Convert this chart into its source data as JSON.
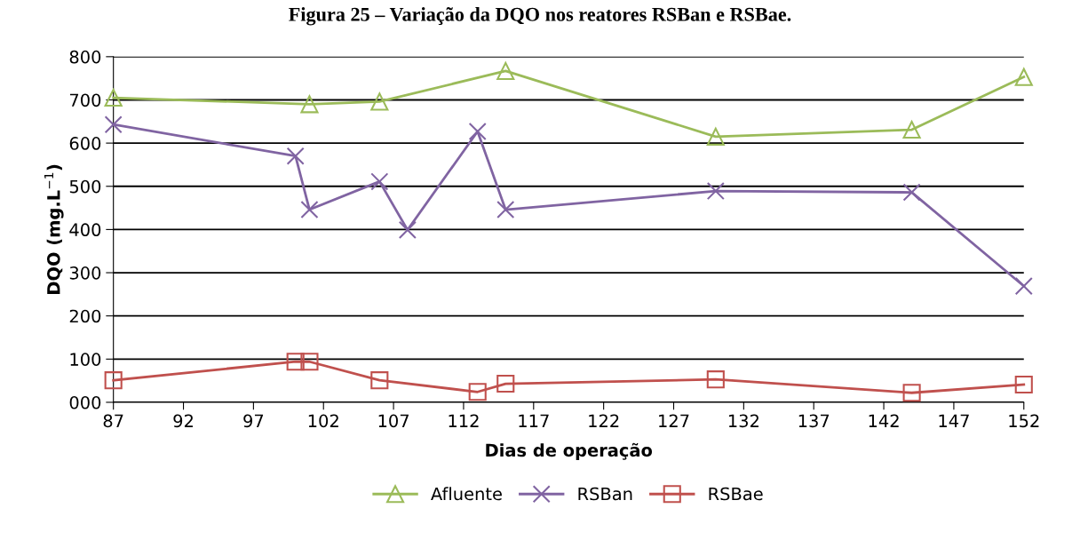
{
  "chart_data": {
    "type": "line",
    "title": "Figura 25 – Variação da DQO nos reatores RSBan e RSBae.",
    "xlabel": "Dias de operação",
    "ylabel": "DQO (mg.L$^{−1}$)",
    "xlim": [
      87,
      152
    ],
    "xticks": [
      87,
      92,
      97,
      102,
      107,
      112,
      117,
      122,
      127,
      132,
      137,
      142,
      147,
      152
    ],
    "ylim": [
      0,
      800
    ],
    "yticks": [
      {
        "value": 0,
        "label": "000"
      },
      100,
      200,
      300,
      400,
      500,
      600,
      700,
      800
    ],
    "grid": "y",
    "legend": "bottom",
    "series": [
      {
        "name": "Afluente",
        "color": "#9bbb59",
        "marker": "triangle",
        "x": [
          87,
          101,
          106,
          115,
          130,
          144,
          152
        ],
        "values": [
          705,
          690,
          696,
          767,
          615,
          631,
          753
        ]
      },
      {
        "name": "RSBan",
        "color": "#8064a2",
        "marker": "cross",
        "x": [
          87,
          100,
          101,
          106,
          108,
          113,
          115,
          130,
          144,
          152
        ],
        "values": [
          643,
          570,
          446,
          511,
          399,
          627,
          446,
          489,
          486,
          269
        ]
      },
      {
        "name": "RSBae",
        "color": "#c0504d",
        "marker": "square",
        "x": [
          87,
          100,
          101,
          106,
          113,
          115,
          130,
          144,
          152
        ],
        "values": [
          51,
          94,
          94,
          51,
          24,
          43,
          53,
          22,
          41
        ]
      }
    ]
  }
}
